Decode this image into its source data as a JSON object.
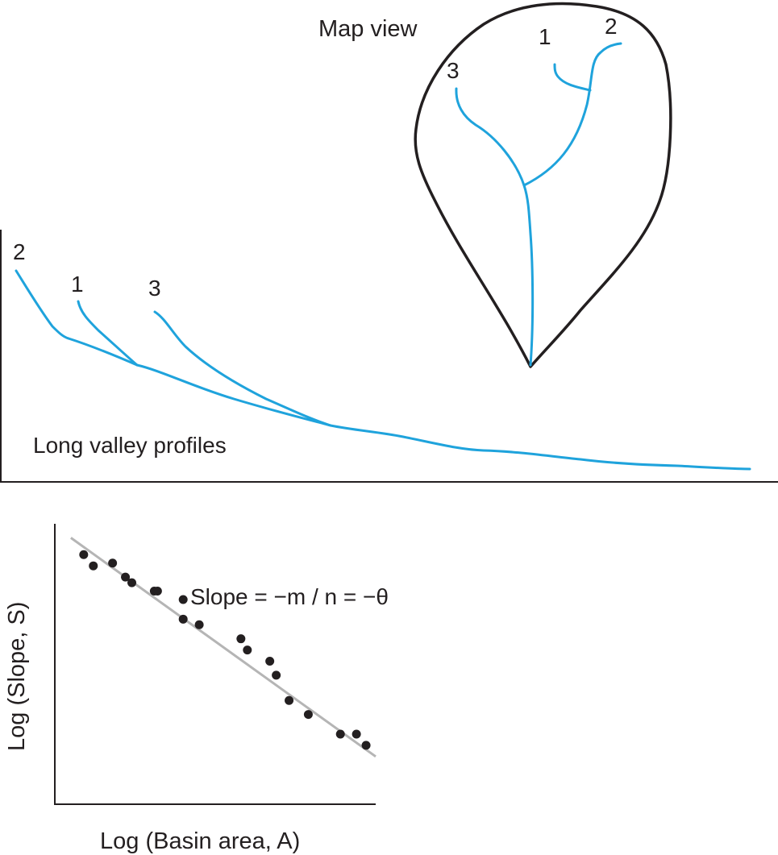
{
  "map": {
    "title": "Map view",
    "stream_labels": [
      "1",
      "2",
      "3"
    ],
    "outline_color": "#231f20",
    "stream_color": "#1fa3dc"
  },
  "profiles": {
    "title": "Long valley profiles",
    "stream_labels": [
      "2",
      "1",
      "3"
    ]
  },
  "chart_data": {
    "type": "scatter",
    "title": "",
    "xlabel": "Log (Basin area, A)",
    "ylabel": "Log (Slope, S)",
    "annotation": "Slope = −m / n = −θ",
    "x": [
      0.09,
      0.12,
      0.18,
      0.22,
      0.24,
      0.31,
      0.32,
      0.4,
      0.4,
      0.45,
      0.58,
      0.6,
      0.67,
      0.69,
      0.73,
      0.79,
      0.89,
      0.94,
      0.97
    ],
    "y": [
      0.89,
      0.85,
      0.86,
      0.81,
      0.79,
      0.76,
      0.76,
      0.73,
      0.66,
      0.64,
      0.59,
      0.55,
      0.51,
      0.46,
      0.37,
      0.32,
      0.25,
      0.25,
      0.21
    ],
    "fit_line": {
      "x": [
        0.05,
        1.0
      ],
      "y": [
        0.95,
        0.17
      ]
    },
    "xlim": [
      0,
      1
    ],
    "ylim": [
      0,
      1
    ],
    "point_color": "#231f20",
    "fit_color": "#b5b5b5"
  }
}
